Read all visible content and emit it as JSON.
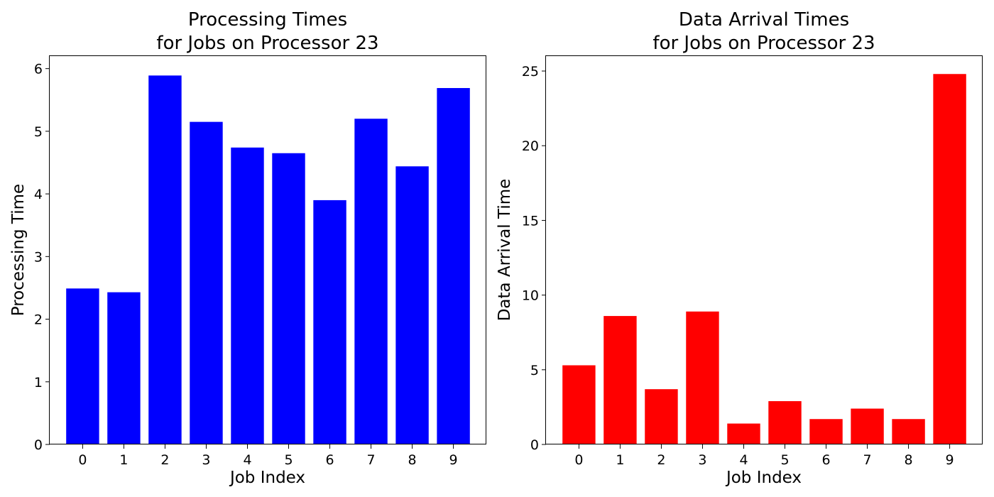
{
  "chart_data": [
    {
      "type": "bar",
      "title_line1": "Processing Times",
      "title_line2": "for Jobs on Processor 23",
      "xlabel": "Job Index",
      "ylabel": "Processing Time",
      "categories": [
        "0",
        "1",
        "2",
        "3",
        "4",
        "5",
        "6",
        "7",
        "8",
        "9"
      ],
      "values": [
        2.49,
        2.43,
        5.89,
        5.15,
        4.74,
        4.65,
        3.9,
        5.2,
        4.44,
        5.69
      ],
      "ylim": [
        0,
        6.2
      ],
      "yticks": [
        0,
        1,
        2,
        3,
        4,
        5,
        6
      ],
      "color": "#0000ff",
      "grid": false
    },
    {
      "type": "bar",
      "title_line1": "Data Arrival Times",
      "title_line2": "for Jobs on Processor 23",
      "xlabel": "Job Index",
      "ylabel": "Data Arrival Time",
      "categories": [
        "0",
        "1",
        "2",
        "3",
        "4",
        "5",
        "6",
        "7",
        "8",
        "9"
      ],
      "values": [
        5.3,
        8.6,
        3.7,
        8.9,
        1.4,
        2.9,
        1.7,
        2.4,
        1.7,
        24.8
      ],
      "ylim": [
        0,
        26.0
      ],
      "yticks": [
        0,
        5,
        10,
        15,
        20,
        25
      ],
      "color": "#ff0000",
      "grid": false
    }
  ]
}
